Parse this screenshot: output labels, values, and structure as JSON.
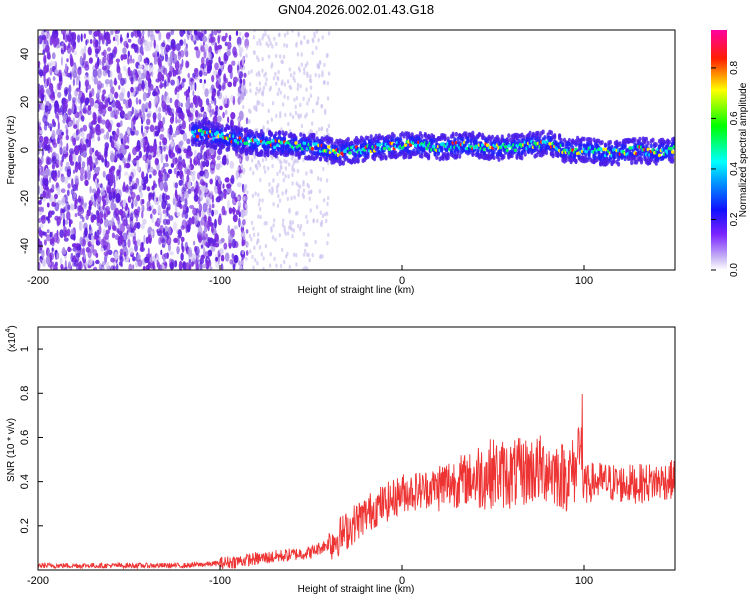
{
  "title": "GN04.2026.002.01.43.G18",
  "colors": {
    "snr_line": "#ee3333",
    "spectrogram_low": "#cfc3f0",
    "spectrogram_mid": "#7a2de0",
    "axis": "#000000"
  },
  "chart_data": [
    {
      "type": "heatmap",
      "title": "GN04.2026.002.01.43.G18",
      "xlabel": "Height of straight line (km)",
      "ylabel": "Frequency (Hz)",
      "xlim": [
        -200,
        150
      ],
      "ylim": [
        -50,
        50
      ],
      "xticks": [
        -200,
        -100,
        0,
        100
      ],
      "xtick_labels": [
        "-200",
        "-100",
        "0",
        "100"
      ],
      "yticks": [
        -40,
        -20,
        0,
        20,
        40
      ],
      "ytick_labels": [
        "-40",
        "-20",
        "0",
        "20",
        "40"
      ],
      "ridge": {
        "description_free": true,
        "x": [
          -110,
          -95,
          -80,
          -60,
          -45,
          -35,
          -25,
          -15,
          -5,
          0,
          10,
          20,
          30,
          40,
          50,
          60,
          70,
          80,
          90,
          100,
          110,
          120,
          130,
          140,
          150
        ],
        "y": [
          7,
          5,
          3,
          2,
          1,
          -1,
          0,
          1,
          2,
          2,
          2,
          1,
          2,
          2,
          1,
          1,
          2,
          3,
          0,
          0,
          -1,
          -1,
          0,
          -1,
          0
        ]
      },
      "colorbar": {
        "label": "Normalized spectral amplitude",
        "range": [
          0,
          0.95
        ],
        "ticks": [
          0,
          0.2,
          0.4,
          0.6,
          0.8
        ],
        "tick_labels": [
          "0.0",
          "0.2",
          "0.4",
          "0.6",
          "0.8"
        ]
      }
    },
    {
      "type": "line",
      "xlabel": "Height of straight line (km)",
      "ylabel": "SNR (10 * v/v)",
      "multiplier_label": "(x10",
      "multiplier_exponent": "4",
      "xlim": [
        -200,
        150
      ],
      "ylim": [
        0,
        1.1
      ],
      "xticks": [
        -200,
        -100,
        0,
        100
      ],
      "xtick_labels": [
        "-200",
        "-100",
        "0",
        "100"
      ],
      "yticks": [
        0.2,
        0.4,
        0.6,
        0.8,
        1
      ],
      "ytick_labels": [
        "0.2",
        "0.4",
        "0.6",
        "0.8",
        "1"
      ],
      "series": [
        {
          "x": [
            -200,
            -180,
            -160,
            -140,
            -120,
            -100,
            -90,
            -80,
            -70,
            -60,
            -50,
            -40,
            -35,
            -30,
            -25,
            -20,
            -15,
            -10,
            -5,
            0,
            10,
            20,
            30,
            40,
            50,
            60,
            70,
            80,
            90,
            95,
            98,
            100,
            105,
            110,
            120,
            130,
            140,
            150
          ],
          "y": [
            0.02,
            0.02,
            0.02,
            0.02,
            0.02,
            0.03,
            0.04,
            0.05,
            0.06,
            0.07,
            0.08,
            0.12,
            0.15,
            0.18,
            0.22,
            0.25,
            0.28,
            0.3,
            0.32,
            0.35,
            0.36,
            0.38,
            0.4,
            0.42,
            0.44,
            0.43,
            0.45,
            0.46,
            0.42,
            0.45,
            0.6,
            0.38,
            0.4,
            0.4,
            0.39,
            0.39,
            0.4,
            0.41
          ]
        }
      ]
    }
  ]
}
